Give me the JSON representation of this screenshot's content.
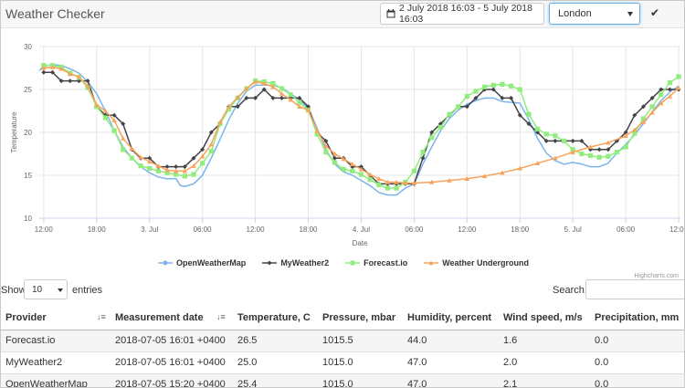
{
  "header": {
    "title": "Weather Checker",
    "date_range": "2 July 2018 16:03 - 5 July 2018 16:03",
    "city": "London",
    "apply_icon": "check-icon",
    "calendar_icon": "calendar-icon"
  },
  "chart_data": {
    "type": "line",
    "xlabel": "Date",
    "ylabel": "Temperature",
    "ylim": [
      10,
      30
    ],
    "yticks": [
      10,
      15,
      20,
      25,
      30
    ],
    "x_start_hour": 11.5,
    "x_end_hour": 84.2,
    "xticks": [
      {
        "h": 12,
        "label": "12:00"
      },
      {
        "h": 18,
        "label": "18:00"
      },
      {
        "h": 24,
        "label": "3. Jul"
      },
      {
        "h": 30,
        "label": "06:00"
      },
      {
        "h": 36,
        "label": "12:00"
      },
      {
        "h": 42,
        "label": "18:00"
      },
      {
        "h": 48,
        "label": "4. Jul"
      },
      {
        "h": 54,
        "label": "06:00"
      },
      {
        "h": 60,
        "label": "12:00"
      },
      {
        "h": 66,
        "label": "18:00"
      },
      {
        "h": 72,
        "label": "5. Jul"
      },
      {
        "h": 78,
        "label": "06:00"
      },
      {
        "h": 84,
        "label": "12:00"
      }
    ],
    "grid": true,
    "legend_position": "bottom",
    "credits": "Highcharts.com",
    "series": [
      {
        "name": "OpenWeatherMap",
        "color": "#7cb5ec",
        "marker": "none",
        "points": [
          [
            11.5,
            27.2
          ],
          [
            12,
            27.7
          ],
          [
            13,
            27.9
          ],
          [
            14,
            27.8
          ],
          [
            15,
            27.4
          ],
          [
            16,
            26.9
          ],
          [
            17,
            25.9
          ],
          [
            18,
            24.5
          ],
          [
            19,
            22.5
          ],
          [
            20,
            20.2
          ],
          [
            21,
            18.3
          ],
          [
            22,
            17.0
          ],
          [
            23,
            16.0
          ],
          [
            24,
            15.3
          ],
          [
            25,
            14.8
          ],
          [
            26,
            14.6
          ],
          [
            27,
            14.6
          ],
          [
            27.5,
            13.8
          ],
          [
            28,
            13.7
          ],
          [
            29,
            14.0
          ],
          [
            30,
            15.0
          ],
          [
            31,
            17.0
          ],
          [
            32,
            19.2
          ],
          [
            33,
            21.5
          ],
          [
            34,
            23.4
          ],
          [
            35,
            24.8
          ],
          [
            36,
            25.5
          ],
          [
            37,
            25.5
          ],
          [
            38,
            25.5
          ],
          [
            39,
            25.2
          ],
          [
            40,
            24.5
          ],
          [
            41,
            23.8
          ],
          [
            42,
            22.8
          ],
          [
            43,
            20.5
          ],
          [
            44,
            18.0
          ],
          [
            45,
            16.3
          ],
          [
            46,
            15.4
          ],
          [
            47,
            15.0
          ],
          [
            48,
            14.4
          ],
          [
            49,
            13.8
          ],
          [
            50,
            13.0
          ],
          [
            51,
            12.7
          ],
          [
            52,
            12.7
          ],
          [
            53,
            13.5
          ],
          [
            54,
            14.0
          ],
          [
            55,
            16.3
          ],
          [
            56,
            18.3
          ],
          [
            57,
            20.2
          ],
          [
            58,
            21.6
          ],
          [
            59,
            22.6
          ],
          [
            60,
            23.3
          ],
          [
            61,
            23.7
          ],
          [
            62,
            24.0
          ],
          [
            63,
            24.0
          ],
          [
            64,
            23.6
          ],
          [
            65,
            23.5
          ],
          [
            66,
            23.4
          ],
          [
            67,
            21.5
          ],
          [
            68,
            19.3
          ],
          [
            69,
            17.6
          ],
          [
            70,
            16.7
          ],
          [
            71,
            16.3
          ],
          [
            72,
            16.5
          ],
          [
            73,
            16.3
          ],
          [
            74,
            16.0
          ],
          [
            75,
            16.0
          ],
          [
            76,
            16.4
          ],
          [
            77,
            17.6
          ],
          [
            78,
            18.6
          ],
          [
            79,
            19.7
          ],
          [
            80,
            21.0
          ],
          [
            81,
            22.4
          ],
          [
            82,
            23.7
          ],
          [
            83,
            24.7
          ],
          [
            84,
            25.4
          ]
        ]
      },
      {
        "name": "MyWeather2",
        "color": "#434348",
        "marker": "diamond",
        "points": [
          [
            12,
            27
          ],
          [
            13,
            27
          ],
          [
            14,
            26
          ],
          [
            15,
            26
          ],
          [
            16,
            26
          ],
          [
            17,
            26
          ],
          [
            18,
            23
          ],
          [
            19,
            22
          ],
          [
            20,
            22
          ],
          [
            21,
            21
          ],
          [
            22,
            18
          ],
          [
            23,
            17
          ],
          [
            24,
            17
          ],
          [
            25,
            16
          ],
          [
            26,
            16
          ],
          [
            27,
            16
          ],
          [
            28,
            16
          ],
          [
            29,
            17
          ],
          [
            30,
            18
          ],
          [
            31,
            20
          ],
          [
            32,
            21
          ],
          [
            33,
            23
          ],
          [
            34,
            23
          ],
          [
            35,
            24
          ],
          [
            36,
            24
          ],
          [
            37,
            25
          ],
          [
            38,
            24
          ],
          [
            39,
            24
          ],
          [
            40,
            24
          ],
          [
            41,
            24
          ],
          [
            42,
            23
          ],
          [
            43,
            20
          ],
          [
            44,
            19
          ],
          [
            45,
            17
          ],
          [
            46,
            17
          ],
          [
            47,
            16
          ],
          [
            48,
            16
          ],
          [
            49,
            15
          ],
          [
            50,
            14
          ],
          [
            51,
            14
          ],
          [
            52,
            14
          ],
          [
            53,
            14
          ],
          [
            54,
            14
          ],
          [
            55,
            17
          ],
          [
            56,
            20
          ],
          [
            57,
            21
          ],
          [
            58,
            22
          ],
          [
            59,
            23
          ],
          [
            60,
            23
          ],
          [
            61,
            24
          ],
          [
            62,
            25
          ],
          [
            63,
            25
          ],
          [
            64,
            24
          ],
          [
            65,
            24
          ],
          [
            66,
            22
          ],
          [
            67,
            21
          ],
          [
            68,
            20
          ],
          [
            69,
            19
          ],
          [
            70,
            19
          ],
          [
            71,
            19
          ],
          [
            72,
            19
          ],
          [
            73,
            19
          ],
          [
            74,
            18
          ],
          [
            75,
            18
          ],
          [
            76,
            18
          ],
          [
            77,
            19
          ],
          [
            78,
            20
          ],
          [
            79,
            22
          ],
          [
            80,
            23
          ],
          [
            81,
            24
          ],
          [
            82,
            25
          ],
          [
            83,
            25
          ],
          [
            84,
            25
          ]
        ]
      },
      {
        "name": "Forecast.io",
        "color": "#90ed7d",
        "marker": "square",
        "points": [
          [
            12,
            27.8
          ],
          [
            13,
            27.8
          ],
          [
            14,
            27.6
          ],
          [
            15,
            26.9
          ],
          [
            16,
            26.4
          ],
          [
            17,
            25.2
          ],
          [
            18,
            23.0
          ],
          [
            19,
            21.7
          ],
          [
            20,
            20.2
          ],
          [
            21,
            18.0
          ],
          [
            22,
            17.0
          ],
          [
            23,
            16.1
          ],
          [
            24,
            15.8
          ],
          [
            25,
            15.5
          ],
          [
            26,
            15.3
          ],
          [
            27,
            15.1
          ],
          [
            28,
            14.9
          ],
          [
            29,
            15.1
          ],
          [
            30,
            16.4
          ],
          [
            31,
            17.8
          ],
          [
            32,
            21.0
          ],
          [
            33,
            22.7
          ],
          [
            34,
            24.0
          ],
          [
            35,
            25.1
          ],
          [
            36,
            26.0
          ],
          [
            37,
            25.9
          ],
          [
            38,
            25.7
          ],
          [
            39,
            25.1
          ],
          [
            40,
            24.4
          ],
          [
            41,
            23.5
          ],
          [
            42,
            22.6
          ],
          [
            43,
            19.8
          ],
          [
            44,
            17.7
          ],
          [
            45,
            16.5
          ],
          [
            46,
            15.7
          ],
          [
            47,
            15.5
          ],
          [
            48,
            15.1
          ],
          [
            49,
            14.5
          ],
          [
            50,
            13.9
          ],
          [
            51,
            13.5
          ],
          [
            52,
            13.5
          ],
          [
            53,
            14.2
          ],
          [
            54,
            15.5
          ],
          [
            55,
            17.7
          ],
          [
            56,
            19.4
          ],
          [
            57,
            20.6
          ],
          [
            58,
            22.1
          ],
          [
            59,
            23.0
          ],
          [
            60,
            24.2
          ],
          [
            61,
            24.8
          ],
          [
            62,
            25.3
          ],
          [
            63,
            25.5
          ],
          [
            64,
            25.6
          ],
          [
            65,
            25.4
          ],
          [
            66,
            25.0
          ],
          [
            67,
            22.1
          ],
          [
            68,
            20.4
          ],
          [
            69,
            19.8
          ],
          [
            70,
            19.6
          ],
          [
            71,
            19.0
          ],
          [
            72,
            18.0
          ],
          [
            73,
            17.5
          ],
          [
            74,
            17.3
          ],
          [
            75,
            17.1
          ],
          [
            76,
            17.2
          ],
          [
            77,
            17.7
          ],
          [
            78,
            18.3
          ],
          [
            79,
            19.9
          ],
          [
            80,
            21.6
          ],
          [
            81,
            23.0
          ],
          [
            82,
            24.4
          ],
          [
            83,
            25.8
          ],
          [
            84,
            26.5
          ]
        ]
      },
      {
        "name": "Weather Underground",
        "color": "#f7a35c",
        "marker": "triangle",
        "points": [
          [
            12,
            27.5
          ],
          [
            13,
            27.6
          ],
          [
            14,
            27.4
          ],
          [
            15,
            26.8
          ],
          [
            16,
            26.5
          ],
          [
            17,
            25.4
          ],
          [
            18,
            23.2
          ],
          [
            19,
            22.5
          ],
          [
            20,
            21.4
          ],
          [
            21,
            19.3
          ],
          [
            22,
            18.1
          ],
          [
            23,
            17.1
          ],
          [
            24,
            16.6
          ],
          [
            25,
            16.1
          ],
          [
            26,
            15.6
          ],
          [
            27,
            15.5
          ],
          [
            28,
            15.5
          ],
          [
            29,
            16.1
          ],
          [
            30,
            17.2
          ],
          [
            31,
            18.6
          ],
          [
            32,
            21.2
          ],
          [
            33,
            23.0
          ],
          [
            34,
            24.1
          ],
          [
            35,
            25.1
          ],
          [
            36,
            25.9
          ],
          [
            37,
            25.7
          ],
          [
            38,
            25.3
          ],
          [
            39,
            24.5
          ],
          [
            40,
            23.8
          ],
          [
            41,
            23.0
          ],
          [
            42,
            22.6
          ],
          [
            43,
            20.2
          ],
          [
            44,
            18.4
          ],
          [
            45,
            17.5
          ],
          [
            46,
            16.9
          ],
          [
            47,
            16.3
          ],
          [
            48,
            15.7
          ],
          [
            49,
            15.1
          ],
          [
            50,
            14.6
          ],
          [
            51,
            14.2
          ],
          [
            52,
            14.2
          ],
          [
            53,
            14.1
          ],
          [
            54,
            14.1
          ],
          [
            56,
            14.2
          ],
          [
            58,
            14.4
          ],
          [
            60,
            14.6
          ],
          [
            62,
            14.9
          ],
          [
            64,
            15.3
          ],
          [
            66,
            15.8
          ],
          [
            68,
            16.4
          ],
          [
            70,
            17.0
          ],
          [
            72,
            17.7
          ],
          [
            74,
            18.3
          ],
          [
            76,
            18.8
          ],
          [
            78,
            19.6
          ],
          [
            79,
            20.3
          ],
          [
            80,
            21.2
          ],
          [
            81,
            22.3
          ],
          [
            82,
            23.4
          ],
          [
            83,
            24.2
          ],
          [
            84,
            25.2
          ]
        ]
      }
    ]
  },
  "table_controls": {
    "show_label": "Show",
    "entries_value": "10",
    "entries_label": "entries",
    "search_label": "Search:",
    "search_value": ""
  },
  "table": {
    "columns": [
      "Provider",
      "Measurement date",
      "Temperature, C",
      "Pressure, mbar",
      "Humidity, percent",
      "Wind speed, m/s",
      "Precipitation, mm"
    ],
    "rows": [
      [
        "Forecast.io",
        "2018-07-05 16:01 +0400",
        "26.5",
        "1015.5",
        "44.0",
        "1.6",
        "0.0"
      ],
      [
        "MyWeather2",
        "2018-07-05 16:01 +0400",
        "25.0",
        "1015.0",
        "47.0",
        "2.0",
        "0.0"
      ],
      [
        "OpenWeatherMap",
        "2018-07-05 15:20 +0400",
        "25.4",
        "1015.0",
        "47.0",
        "2.1",
        "0.0"
      ]
    ]
  }
}
